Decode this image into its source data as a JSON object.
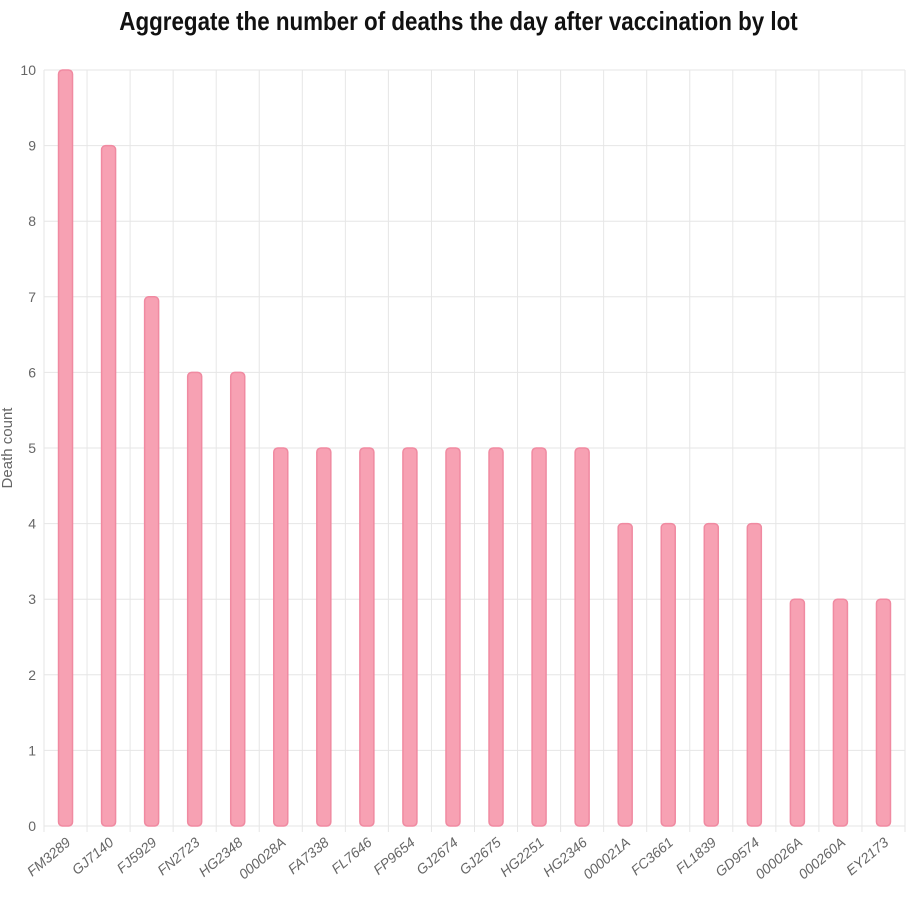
{
  "chart_data": {
    "type": "bar",
    "title": "Aggregate the number of deaths the day after vaccination by lot",
    "xlabel": "",
    "ylabel": "Death count",
    "categories": [
      "FM3289",
      "GJ7140",
      "FJ5929",
      "FN2723",
      "HG2348",
      "000028A",
      "FA7338",
      "FL7646",
      "FP9654",
      "GJ2674",
      "GJ2675",
      "HG2251",
      "HG2346",
      "000021A",
      "FC3661",
      "FL1839",
      "GD9574",
      "000026A",
      "000260A",
      "EY2173"
    ],
    "values": [
      10,
      9,
      7,
      6,
      6,
      5,
      5,
      5,
      5,
      5,
      5,
      5,
      5,
      4,
      4,
      4,
      4,
      3,
      3,
      3
    ],
    "ylim": [
      0,
      10
    ],
    "yticks": [
      0,
      1,
      2,
      3,
      4,
      5,
      6,
      7,
      8,
      9,
      10
    ],
    "grid": true,
    "legend": "none",
    "colors": {
      "bar_fill": "#f7a1b3",
      "bar_stroke": "#f08aa1",
      "grid": "#e6e6e6"
    }
  }
}
